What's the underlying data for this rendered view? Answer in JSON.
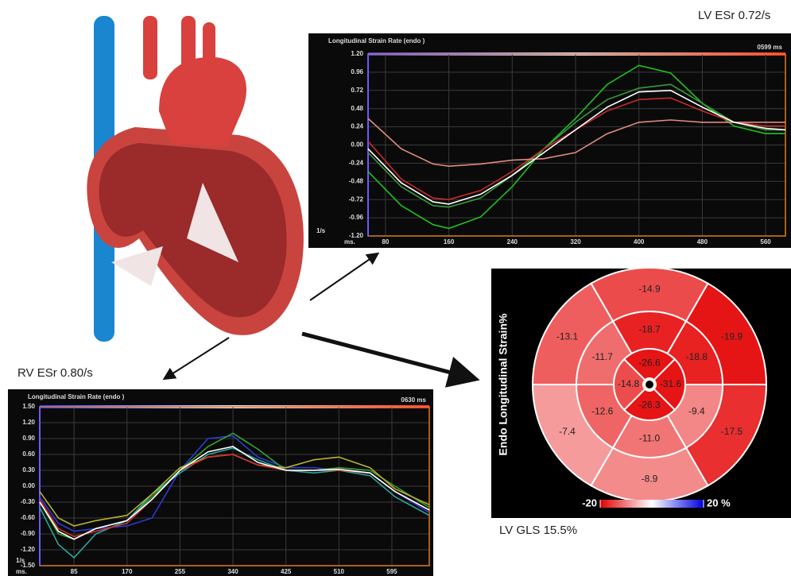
{
  "captions": {
    "lv_esr": "LV ESr 0.72/s",
    "rv_esr": "RV ESr 0.80/s",
    "lv_gls": "LV GLS 15.5%"
  },
  "chart_data": [
    {
      "type": "line",
      "title": "Longitudinal Strain Rate (endo )",
      "time_label": "0599 ms",
      "y_unit": "1/s",
      "x_unit": "ms.",
      "xlim": [
        58,
        585
      ],
      "ylim": [
        -1.2,
        1.2
      ],
      "xticks": [
        80,
        160,
        240,
        320,
        400,
        480,
        560
      ],
      "yticks": [
        {
          "value": 1.2,
          "label": "1.20"
        },
        {
          "value": 0.96,
          "label": "0.96"
        },
        {
          "value": 0.72,
          "label": "0.72"
        },
        {
          "value": 0.48,
          "label": "0.48"
        },
        {
          "value": 0.24,
          "label": "0.24"
        },
        {
          "value": 0,
          "label": "0.00"
        },
        {
          "value": -0.24,
          "label": "-0.24"
        },
        {
          "value": -0.48,
          "label": "-0.48"
        },
        {
          "value": -0.72,
          "label": "-0.72"
        },
        {
          "value": -0.96,
          "label": "-0.96"
        },
        {
          "value": -1.2,
          "label": "-1.20"
        }
      ],
      "grid": true,
      "x": [
        58,
        100,
        140,
        160,
        200,
        240,
        280,
        320,
        360,
        400,
        440,
        480,
        520,
        560,
        585
      ],
      "series": [
        {
          "color": "#1fc21f",
          "values": [
            -0.35,
            -0.8,
            -1.05,
            -1.1,
            -0.95,
            -0.55,
            -0.05,
            0.35,
            0.8,
            1.05,
            0.95,
            0.55,
            0.25,
            0.15,
            0.15
          ]
        },
        {
          "color": "#3a9a3a",
          "values": [
            -0.1,
            -0.55,
            -0.8,
            -0.82,
            -0.7,
            -0.4,
            -0.05,
            0.3,
            0.6,
            0.75,
            0.8,
            0.55,
            0.3,
            0.2,
            0.2
          ]
        },
        {
          "color": "#c62a2a",
          "values": [
            0.05,
            -0.45,
            -0.7,
            -0.72,
            -0.6,
            -0.35,
            -0.05,
            0.2,
            0.45,
            0.6,
            0.62,
            0.45,
            0.3,
            0.25,
            0.25
          ]
        },
        {
          "color": "#e08a80",
          "values": [
            0.35,
            -0.05,
            -0.25,
            -0.28,
            -0.25,
            -0.2,
            -0.18,
            -0.1,
            0.15,
            0.3,
            0.33,
            0.3,
            0.3,
            0.3,
            0.3
          ]
        },
        {
          "color": "#ffffff",
          "values": [
            -0.05,
            -0.5,
            -0.75,
            -0.78,
            -0.65,
            -0.4,
            -0.1,
            0.2,
            0.5,
            0.7,
            0.72,
            0.5,
            0.3,
            0.22,
            0.2
          ]
        }
      ]
    },
    {
      "type": "line",
      "title": "Longitudinal Strain Rate (endo )",
      "time_label": "0630 ms",
      "y_unit": "1/s",
      "x_unit": "ms.",
      "xlim": [
        30,
        655
      ],
      "ylim": [
        -1.5,
        1.5
      ],
      "xticks": [
        85,
        170,
        255,
        340,
        425,
        510,
        595
      ],
      "yticks": [
        {
          "value": 1.5,
          "label": "1.50"
        },
        {
          "value": 1.2,
          "label": "1.20"
        },
        {
          "value": 0.9,
          "label": "0.90"
        },
        {
          "value": 0.6,
          "label": "0.60"
        },
        {
          "value": 0.3,
          "label": "0.30"
        },
        {
          "value": 0,
          "label": "0.00"
        },
        {
          "value": -0.3,
          "label": "-0.30"
        },
        {
          "value": -0.6,
          "label": "-0.60"
        },
        {
          "value": -0.9,
          "label": "-0.90"
        },
        {
          "value": -1.2,
          "label": "-1.20"
        },
        {
          "value": -1.5,
          "label": "-1.50"
        }
      ],
      "grid": true,
      "x": [
        30,
        60,
        85,
        120,
        170,
        210,
        255,
        300,
        340,
        380,
        425,
        470,
        510,
        560,
        600,
        655
      ],
      "series": [
        {
          "color": "#2b3bd6",
          "values": [
            -0.2,
            -0.7,
            -0.85,
            -0.8,
            -0.75,
            -0.6,
            0.3,
            0.9,
            0.95,
            0.55,
            0.35,
            0.35,
            0.3,
            0.25,
            -0.1,
            -0.5
          ]
        },
        {
          "color": "#33a033",
          "values": [
            -0.3,
            -0.9,
            -1.0,
            -0.8,
            -0.65,
            -0.2,
            0.3,
            0.75,
            1.0,
            0.7,
            0.3,
            0.3,
            0.35,
            0.3,
            0,
            -0.4
          ]
        },
        {
          "color": "#2aa9a0",
          "values": [
            -0.4,
            -1.1,
            -1.35,
            -0.9,
            -0.65,
            -0.15,
            0.25,
            0.6,
            0.72,
            0.5,
            0.3,
            0.25,
            0.3,
            0.2,
            -0.2,
            -0.55
          ]
        },
        {
          "color": "#b8b030",
          "values": [
            -0.1,
            -0.6,
            -0.75,
            -0.65,
            -0.55,
            -0.15,
            0.35,
            0.55,
            0.6,
            0.4,
            0.35,
            0.5,
            0.55,
            0.35,
            -0.05,
            -0.35
          ]
        },
        {
          "color": "#d03030",
          "values": [
            -0.25,
            -0.8,
            -0.95,
            -0.85,
            -0.7,
            -0.25,
            0.3,
            0.55,
            0.6,
            0.4,
            0.3,
            0.3,
            0.3,
            0.25,
            -0.1,
            -0.45
          ]
        },
        {
          "color": "#ffffff",
          "values": [
            -0.3,
            -0.85,
            -1.0,
            -0.8,
            -0.65,
            -0.25,
            0.3,
            0.65,
            0.75,
            0.45,
            0.3,
            0.3,
            0.32,
            0.25,
            -0.1,
            -0.45
          ]
        }
      ]
    },
    {
      "type": "bullseye",
      "y_label": "Endo Longitudinal Strain%",
      "clim": [
        -20,
        20
      ],
      "cticks": [
        -20,
        {
          "value": 20,
          "label": "20 %"
        }
      ],
      "rings": [
        {
          "values": [
            -14.9,
            -19.9,
            -17.5,
            -8.9,
            -7.4,
            -13.1
          ],
          "value_labels": [
            "-14.9",
            "-19.9",
            "-17.5",
            "-8.9",
            "-7.4",
            "-13.1"
          ]
        },
        {
          "values": [
            -18.7,
            -18.8,
            -9.4,
            -11.0,
            -12.6,
            -11.7
          ],
          "value_labels": [
            "-18.7",
            "-18.8",
            "-9.4",
            "-11.0",
            "-12.6",
            "-11.7"
          ]
        },
        {
          "values": [
            -26.6,
            -31.6,
            -26.3,
            -14.8
          ],
          "value_labels": [
            "-26.6",
            "-31.6",
            "-26.3",
            "-14.8"
          ]
        }
      ]
    }
  ]
}
